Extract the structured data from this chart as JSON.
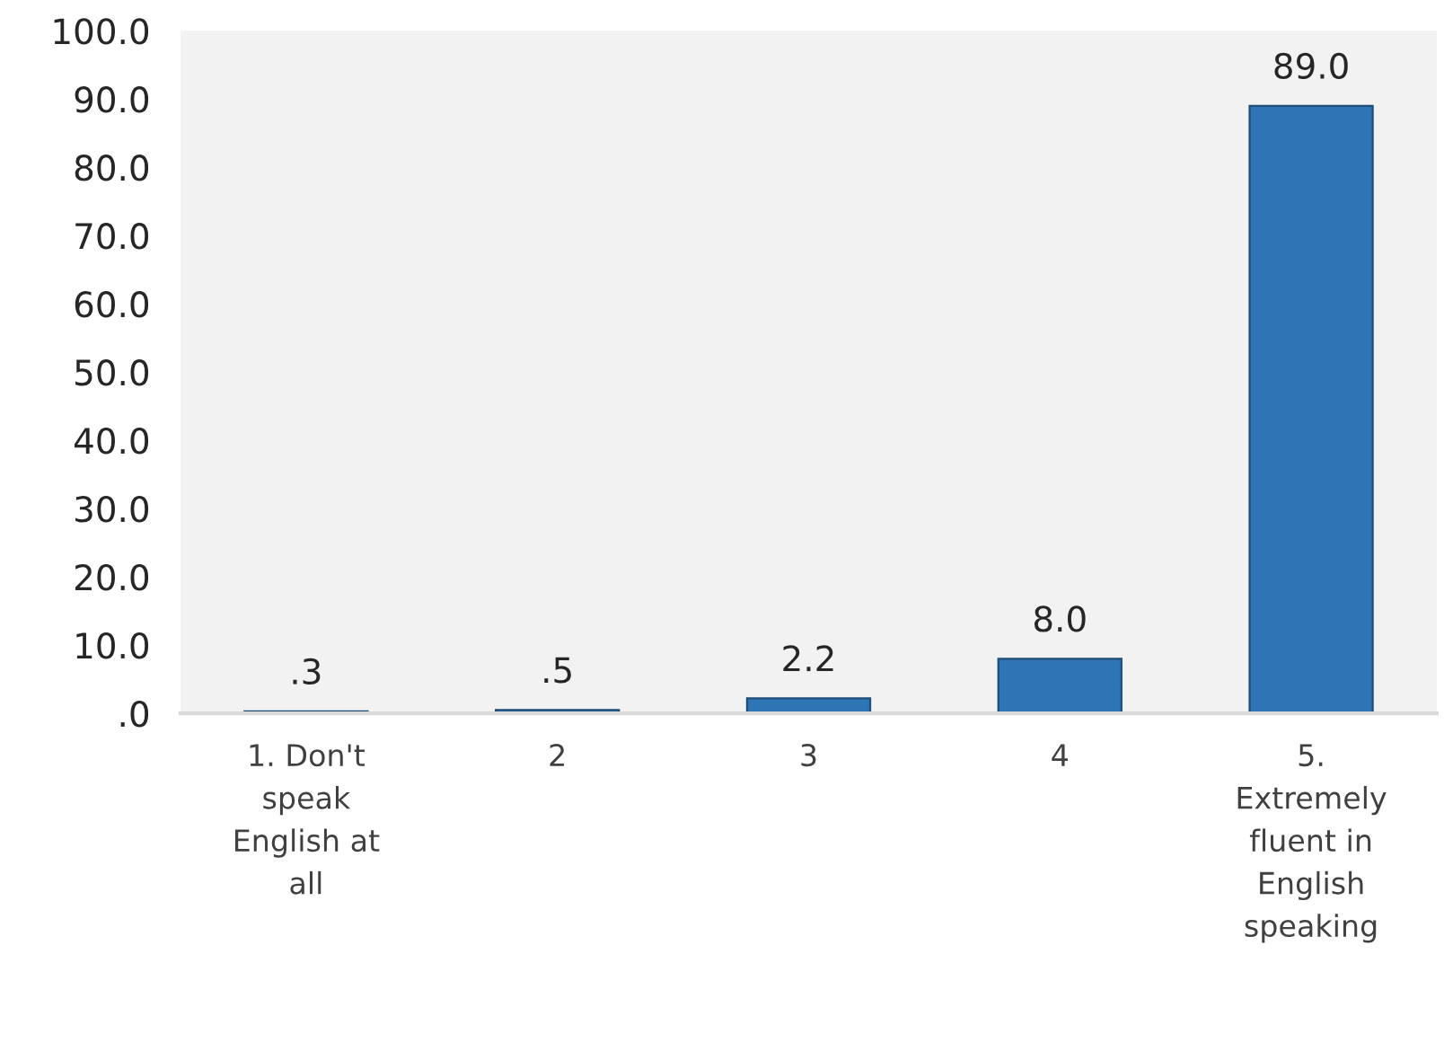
{
  "chart_data": {
    "type": "bar",
    "categories": [
      "1. Don't\nspeak\nEnglish at\nall",
      "2",
      "3",
      "4",
      "5.\nExtremely\nfluent in\nEnglish\nspeaking"
    ],
    "values": [
      0.3,
      0.5,
      2.2,
      8.0,
      89.0
    ],
    "value_labels": [
      ".3",
      ".5",
      "2.2",
      "8.0",
      "89.0"
    ],
    "color": "#2e75b6",
    "ylim": [
      0,
      100
    ],
    "yticks": [
      {
        "value": 0,
        "label": ".0"
      },
      {
        "value": 10,
        "label": "10.0"
      },
      {
        "value": 20,
        "label": "20.0"
      },
      {
        "value": 30,
        "label": "30.0"
      },
      {
        "value": 40,
        "label": "40.0"
      },
      {
        "value": 50,
        "label": "50.0"
      },
      {
        "value": 60,
        "label": "60.0"
      },
      {
        "value": 70,
        "label": "70.0"
      },
      {
        "value": 80,
        "label": "80.0"
      },
      {
        "value": 90,
        "label": "90.0"
      },
      {
        "value": 100,
        "label": "100.0"
      }
    ],
    "grid": false,
    "legend": false
  }
}
